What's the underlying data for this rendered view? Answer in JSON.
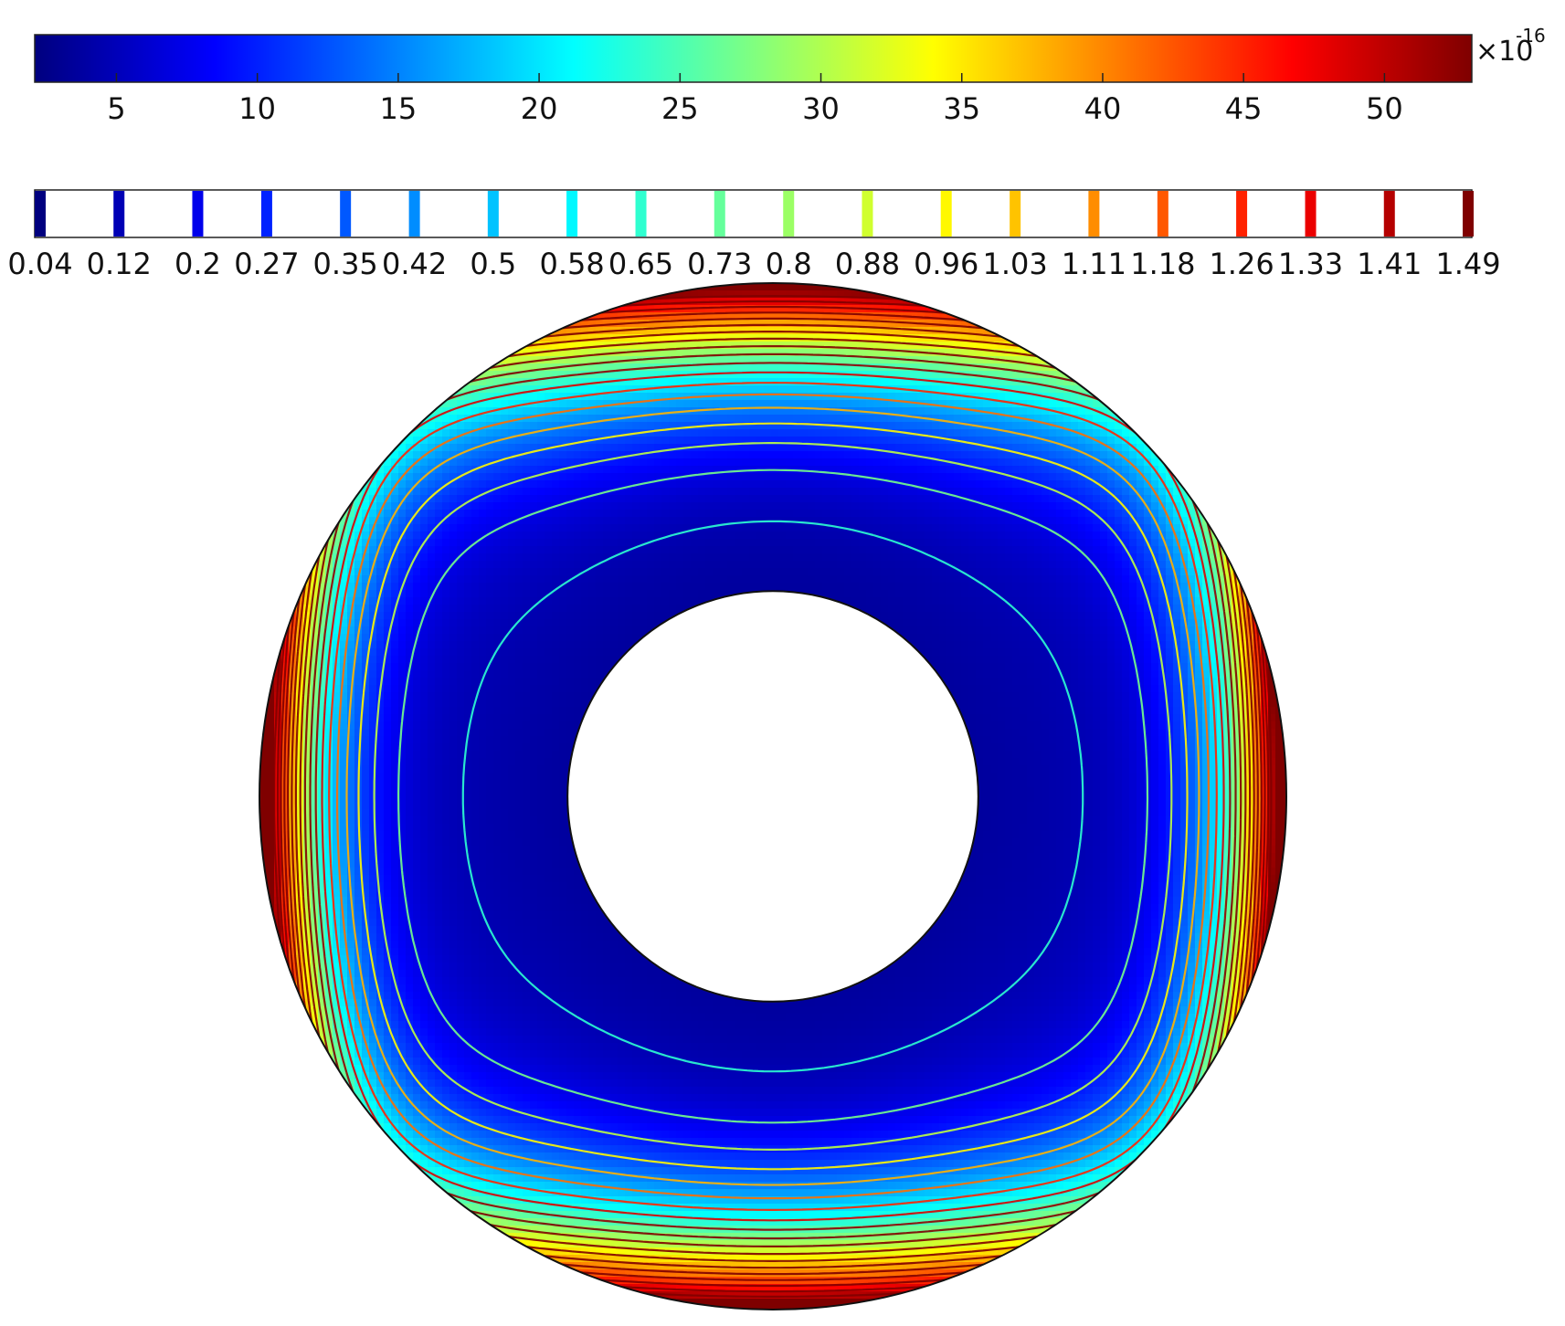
{
  "chart_data": {
    "type": "heatmap",
    "description_kind": "surface plot with contour overlay on an annular domain",
    "colormap": "jet",
    "colormap_stops": [
      "#00007f",
      "#0000ff",
      "#0080ff",
      "#00ffff",
      "#80ff80",
      "#ffff00",
      "#ff8000",
      "#ff0000",
      "#7f0000"
    ],
    "surface_legend": {
      "ticks": [
        "5",
        "10",
        "15",
        "20",
        "25",
        "30",
        "35",
        "40",
        "45",
        "50"
      ],
      "tick_values": [
        5,
        10,
        15,
        20,
        25,
        30,
        35,
        40,
        45,
        50
      ],
      "range": [
        2.1,
        53.1
      ],
      "multiplier_base": "×10",
      "multiplier_exponent": "-16"
    },
    "contour_legend": {
      "ticks": [
        "0.04",
        "0.12",
        "0.2",
        "0.27",
        "0.35",
        "0.42",
        "0.5",
        "0.58",
        "0.65",
        "0.73",
        "0.8",
        "0.88",
        "0.96",
        "1.03",
        "1.11",
        "1.18",
        "1.26",
        "1.33",
        "1.41",
        "1.49"
      ],
      "levels": [
        0.04,
        0.12,
        0.2,
        0.27,
        0.35,
        0.42,
        0.5,
        0.58,
        0.65,
        0.73,
        0.8,
        0.88,
        0.96,
        1.03,
        1.11,
        1.18,
        1.26,
        1.33,
        1.41,
        1.49
      ]
    },
    "domain": {
      "shape": "annulus",
      "outer_radius": 1.0,
      "inner_radius": 0.4
    },
    "field_model": {
      "hot_spots_deg": [
        90,
        270,
        0,
        180
      ],
      "min_value_region": "near inner boundary at left and right",
      "max_value_region": "outer boundary at top, bottom, left, right"
    },
    "xlabel": "",
    "ylabel": "",
    "title": "",
    "grid": false
  }
}
